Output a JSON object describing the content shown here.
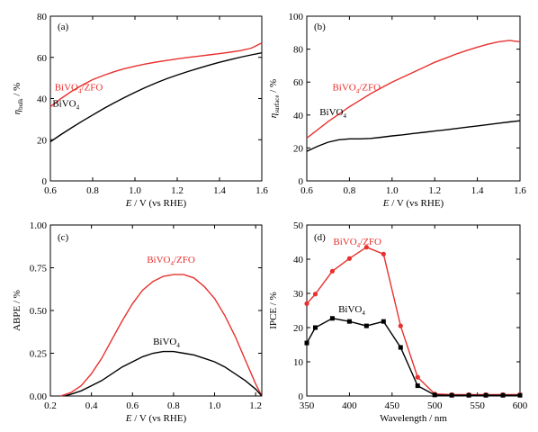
{
  "chart_data": [
    {
      "panel": "(a)",
      "type": "line",
      "xlabel": "E / V (vs RHE)",
      "ylabel_main": "η",
      "ylabel_sub": "bulk",
      "ylabel_unit": " / %",
      "xlim": [
        0.6,
        1.6
      ],
      "ylim": [
        0,
        80
      ],
      "xticks": [
        0.6,
        0.8,
        1.0,
        1.2,
        1.4,
        1.6
      ],
      "yticks": [
        0,
        20,
        40,
        60,
        80
      ],
      "series": [
        {
          "name_main": "BiVO",
          "name_sub": "4",
          "name_rest": "/ZFO",
          "color": "#e8312e",
          "x": [
            0.6,
            0.65,
            0.7,
            0.75,
            0.8,
            0.85,
            0.9,
            0.95,
            1.0,
            1.05,
            1.1,
            1.15,
            1.2,
            1.25,
            1.3,
            1.35,
            1.4,
            1.45,
            1.5,
            1.55,
            1.6
          ],
          "y": [
            36,
            40,
            43.5,
            46.5,
            49.2,
            51.2,
            53,
            54.5,
            55.7,
            56.8,
            57.7,
            58.5,
            59.3,
            60,
            60.6,
            61.2,
            61.8,
            62.5,
            63.3,
            64.5,
            67
          ]
        },
        {
          "name_main": "BiVO",
          "name_sub": "4",
          "name_rest": "",
          "color": "#000000",
          "x": [
            0.6,
            0.65,
            0.7,
            0.75,
            0.8,
            0.85,
            0.9,
            0.95,
            1.0,
            1.05,
            1.1,
            1.15,
            1.2,
            1.25,
            1.3,
            1.35,
            1.4,
            1.45,
            1.5,
            1.55,
            1.6
          ],
          "y": [
            19,
            22.5,
            25.8,
            29,
            32,
            35,
            37.8,
            40.5,
            43,
            45.4,
            47.6,
            49.6,
            51.4,
            53.1,
            54.7,
            56.2,
            57.6,
            58.9,
            60.1,
            61.2,
            62.2
          ]
        }
      ]
    },
    {
      "panel": "(b)",
      "type": "line",
      "xlabel": "E / V (vs RHE)",
      "ylabel_main": "η",
      "ylabel_sub": "surface",
      "ylabel_unit": " / %",
      "xlim": [
        0.6,
        1.6
      ],
      "ylim": [
        0,
        100
      ],
      "xticks": [
        0.6,
        0.8,
        1.0,
        1.2,
        1.4,
        1.6
      ],
      "yticks": [
        0,
        20,
        40,
        60,
        80,
        100
      ],
      "series": [
        {
          "name_main": "BiVO",
          "name_sub": "4",
          "name_rest": "/ZFO",
          "color": "#e8312e",
          "x": [
            0.6,
            0.65,
            0.7,
            0.75,
            0.8,
            0.85,
            0.9,
            0.95,
            1.0,
            1.05,
            1.1,
            1.15,
            1.2,
            1.25,
            1.3,
            1.35,
            1.4,
            1.45,
            1.5,
            1.55,
            1.6
          ],
          "y": [
            26,
            31,
            36,
            40.5,
            45,
            49,
            53,
            56.5,
            60,
            63,
            66,
            69,
            72,
            74.5,
            77,
            79.2,
            81.2,
            83,
            84.5,
            85.3,
            84.5
          ]
        },
        {
          "name_main": "BiVO",
          "name_sub": "4",
          "name_rest": "",
          "color": "#000000",
          "x": [
            0.6,
            0.65,
            0.7,
            0.75,
            0.8,
            0.85,
            0.9,
            0.95,
            1.0,
            1.05,
            1.1,
            1.15,
            1.2,
            1.25,
            1.3,
            1.35,
            1.4,
            1.45,
            1.5,
            1.55,
            1.6
          ],
          "y": [
            18,
            21,
            23.5,
            25,
            25.5,
            25.5,
            25.8,
            26.5,
            27.3,
            28,
            28.8,
            29.5,
            30.3,
            31,
            31.8,
            32.6,
            33.4,
            34.2,
            35,
            35.8,
            36.5
          ]
        }
      ]
    },
    {
      "panel": "(c)",
      "type": "line",
      "xlabel": "E / V (vs RHE)",
      "ylabel_main": "ABPE / %",
      "ylabel_sub": "",
      "ylabel_unit": "",
      "xlim": [
        0.2,
        1.23
      ],
      "ylim": [
        0,
        1.0
      ],
      "xticks": [
        0.2,
        0.4,
        0.6,
        0.8,
        1.0,
        1.2
      ],
      "yticks": [
        0,
        0.25,
        0.5,
        0.75,
        1.0
      ],
      "xtick_labels": [
        "0.2",
        "0.4",
        "0.6",
        "0.8",
        "1.0",
        "1.2"
      ],
      "ytick_labels": [
        "0.00",
        "0.25",
        "0.50",
        "0.75",
        "1.00"
      ],
      "series": [
        {
          "name_main": "BiVO",
          "name_sub": "4",
          "name_rest": "/ZFO",
          "color": "#e8312e",
          "x": [
            0.25,
            0.3,
            0.35,
            0.4,
            0.45,
            0.5,
            0.55,
            0.6,
            0.65,
            0.7,
            0.75,
            0.8,
            0.85,
            0.9,
            0.95,
            1.0,
            1.05,
            1.1,
            1.15,
            1.2,
            1.23
          ],
          "y": [
            0.0,
            0.02,
            0.06,
            0.13,
            0.22,
            0.33,
            0.44,
            0.54,
            0.62,
            0.67,
            0.7,
            0.71,
            0.71,
            0.69,
            0.64,
            0.57,
            0.47,
            0.35,
            0.21,
            0.07,
            0.0
          ]
        },
        {
          "name_main": "BiVO",
          "name_sub": "4",
          "name_rest": "",
          "color": "#000000",
          "x": [
            0.27,
            0.3,
            0.35,
            0.4,
            0.45,
            0.5,
            0.55,
            0.6,
            0.65,
            0.7,
            0.75,
            0.8,
            0.85,
            0.9,
            0.95,
            1.0,
            1.05,
            1.1,
            1.15,
            1.2,
            1.23
          ],
          "y": [
            0.0,
            0.01,
            0.03,
            0.06,
            0.09,
            0.13,
            0.17,
            0.2,
            0.23,
            0.25,
            0.26,
            0.26,
            0.25,
            0.24,
            0.22,
            0.2,
            0.17,
            0.13,
            0.09,
            0.04,
            0.0
          ]
        }
      ]
    },
    {
      "panel": "(d)",
      "type": "line",
      "markers": true,
      "xlabel": "Wavelength / nm",
      "ylabel_main": "IPCE / %",
      "ylabel_sub": "",
      "ylabel_unit": "",
      "xlim": [
        350,
        600
      ],
      "ylim": [
        0,
        50
      ],
      "xticks": [
        350,
        400,
        450,
        500,
        550,
        600
      ],
      "yticks": [
        0,
        10,
        20,
        30,
        40,
        50
      ],
      "series": [
        {
          "name_main": "BiVO",
          "name_sub": "4",
          "name_rest": "/ZFO",
          "color": "#e8312e",
          "marker": "circle",
          "x": [
            350,
            360,
            380,
            400,
            420,
            440,
            460,
            480,
            500,
            520,
            540,
            560,
            580,
            600
          ],
          "y": [
            27,
            29.8,
            36.5,
            40.2,
            43.5,
            41.5,
            20.5,
            5.5,
            0.6,
            0.4,
            0.4,
            0.4,
            0.4,
            0.4
          ]
        },
        {
          "name_main": "BiVO",
          "name_sub": "4",
          "name_rest": "",
          "color": "#000000",
          "marker": "square",
          "x": [
            350,
            360,
            380,
            400,
            420,
            440,
            460,
            480,
            500,
            520,
            540,
            560,
            580,
            600
          ],
          "y": [
            15.5,
            20,
            22.7,
            21.8,
            20.5,
            21.8,
            14.2,
            3,
            0.3,
            0.2,
            0.2,
            0.2,
            0.2,
            0.2
          ]
        }
      ]
    }
  ]
}
